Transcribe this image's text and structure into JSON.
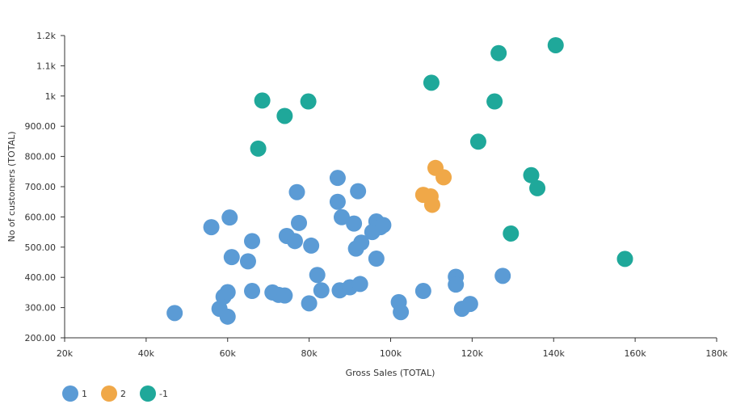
{
  "chart_data": {
    "type": "scatter",
    "xlabel": "Gross Sales (TOTAL)",
    "ylabel": "No of customers (TOTAL)",
    "xlim": [
      20000,
      180000
    ],
    "ylim": [
      200,
      1200
    ],
    "x_ticks": [
      {
        "value": 20000,
        "label": "20k"
      },
      {
        "value": 40000,
        "label": "40k"
      },
      {
        "value": 60000,
        "label": "60k"
      },
      {
        "value": 80000,
        "label": "80k"
      },
      {
        "value": 100000,
        "label": "100k"
      },
      {
        "value": 120000,
        "label": "120k"
      },
      {
        "value": 140000,
        "label": "140k"
      },
      {
        "value": 160000,
        "label": "160k"
      },
      {
        "value": 180000,
        "label": "180k"
      }
    ],
    "y_ticks": [
      {
        "value": 200,
        "label": "200.00"
      },
      {
        "value": 300,
        "label": "300.00"
      },
      {
        "value": 400,
        "label": "400.00"
      },
      {
        "value": 500,
        "label": "500.00"
      },
      {
        "value": 600,
        "label": "600.00"
      },
      {
        "value": 700,
        "label": "700.00"
      },
      {
        "value": 800,
        "label": "800.00"
      },
      {
        "value": 900,
        "label": "900.00"
      },
      {
        "value": 1000,
        "label": "1k"
      },
      {
        "value": 1100,
        "label": "1.1k"
      },
      {
        "value": 1200,
        "label": "1.2k"
      }
    ],
    "grid": false,
    "legend_position": "bottom-left",
    "series": [
      {
        "name": "1",
        "color": "#5b9bd5",
        "points": [
          [
            47000,
            282
          ],
          [
            56000,
            566
          ],
          [
            58000,
            296
          ],
          [
            59000,
            336
          ],
          [
            60000,
            351
          ],
          [
            60000,
            270
          ],
          [
            60500,
            598
          ],
          [
            61000,
            467
          ],
          [
            65000,
            453
          ],
          [
            66000,
            520
          ],
          [
            66000,
            355
          ],
          [
            71000,
            350
          ],
          [
            72500,
            342
          ],
          [
            74000,
            340
          ],
          [
            74500,
            537
          ],
          [
            76500,
            520
          ],
          [
            77000,
            682
          ],
          [
            77500,
            580
          ],
          [
            80000,
            314
          ],
          [
            80500,
            505
          ],
          [
            82000,
            408
          ],
          [
            83000,
            357
          ],
          [
            87000,
            729
          ],
          [
            87000,
            650
          ],
          [
            87500,
            357
          ],
          [
            88000,
            599
          ],
          [
            90000,
            367
          ],
          [
            91000,
            578
          ],
          [
            91500,
            495
          ],
          [
            92000,
            685
          ],
          [
            92500,
            378
          ],
          [
            92800,
            515
          ],
          [
            95500,
            550
          ],
          [
            96500,
            585
          ],
          [
            96500,
            462
          ],
          [
            97500,
            566
          ],
          [
            98200,
            573
          ],
          [
            102000,
            318
          ],
          [
            102500,
            285
          ],
          [
            108000,
            355
          ],
          [
            116000,
            402
          ],
          [
            116000,
            376
          ],
          [
            117500,
            296
          ],
          [
            119500,
            312
          ],
          [
            127500,
            405
          ]
        ]
      },
      {
        "name": "2",
        "color": "#f0a848",
        "points": [
          [
            108000,
            673
          ],
          [
            109800,
            668
          ],
          [
            110200,
            640
          ],
          [
            111000,
            762
          ],
          [
            113000,
            731
          ]
        ]
      },
      {
        "name": "-1",
        "color": "#1fa89a",
        "points": [
          [
            67500,
            826
          ],
          [
            68500,
            985
          ],
          [
            74000,
            934
          ],
          [
            79800,
            982
          ],
          [
            110000,
            1044
          ],
          [
            121500,
            849
          ],
          [
            125500,
            982
          ],
          [
            126500,
            1142
          ],
          [
            129500,
            545
          ],
          [
            134500,
            738
          ],
          [
            136000,
            695
          ],
          [
            140500,
            1168
          ],
          [
            157500,
            461
          ]
        ]
      }
    ]
  }
}
